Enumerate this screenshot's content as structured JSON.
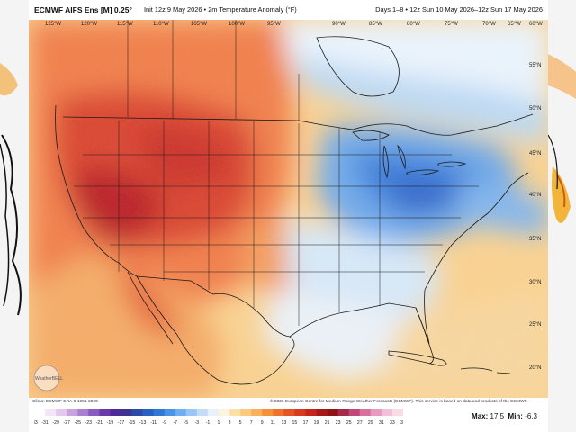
{
  "header": {
    "model": "ECMWF AIFS Ens [M] 0.25°",
    "init_field": "Init 12z 9 May 2026 • 2m Temperature Anomaly (°F)",
    "valid": "Days 1–8 • 12z Sun 10 May 2026–12z Sun 17 May 2026"
  },
  "map": {
    "lon_labels": [
      "125°W",
      "120°W",
      "115°W",
      "110°W",
      "105°W",
      "100°W",
      "95°W",
      "90°W",
      "85°W",
      "80°W",
      "75°W",
      "70°W",
      "65°W",
      "60°W"
    ],
    "lat_labels": [
      "55°N",
      "50°N",
      "45°N",
      "40°N",
      "35°N",
      "30°N",
      "25°N",
      "20°N"
    ],
    "watermark": "WeatherBELL",
    "colors": {
      "warm_strong": "#b2101e",
      "warm": "#e8502a",
      "warm_light": "#f6b36a",
      "neutral": "#eef3f8",
      "cool_light": "#cfe4f6",
      "cool": "#6aa6e8",
      "cool_strong": "#2f6fd4"
    }
  },
  "footer": {
    "climo": "Climo: ECMWF ERA-5 1991-2020",
    "copyright": "© 2026 European Centre for Medium-Range Weather Forecasts (ECMWF). This service is based on data and products of the ECMWF.",
    "scale_values": [
      "-33",
      "-31",
      "-29",
      "-27",
      "-25",
      "-23",
      "-21",
      "-19",
      "-17",
      "-15",
      "-13",
      "-11",
      "-9",
      "-7",
      "-5",
      "-3",
      "-1",
      "1",
      "3",
      "5",
      "7",
      "9",
      "11",
      "13",
      "15",
      "17",
      "19",
      "21",
      "23",
      "25",
      "27",
      "29",
      "31",
      "33",
      "35"
    ],
    "max_label": "Max:",
    "max_value": "17.5",
    "min_label": "Min:",
    "min_value": "-6.3"
  }
}
